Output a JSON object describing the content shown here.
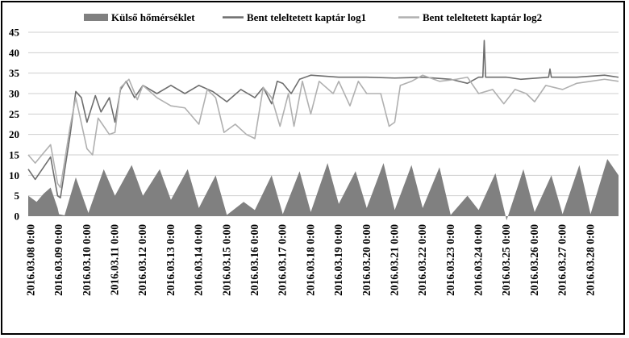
{
  "chart_data": {
    "type": "area",
    "title": "",
    "xlabel": "",
    "ylabel": "",
    "ylim": [
      0,
      45
    ],
    "yticks": [
      0,
      5,
      10,
      15,
      20,
      25,
      30,
      35,
      40,
      45
    ],
    "grid": {
      "horizontal": true,
      "vertical": false
    },
    "legend_position": "top",
    "x_range": [
      "2016.03.08 0:00",
      "2016.03.29 0:00"
    ],
    "x_tick_labels": [
      "2016.03.08 0:00",
      "2016.03.09 0:00",
      "2016.03.10 0:00",
      "2016.03.11 0:00",
      "2016.03.12 0:00",
      "2016.03.13 0:00",
      "2016.03.14 0:00",
      "2016.03.15 0:00",
      "2016.03.16 0:00",
      "2016.03.17 0:00",
      "2016.03.18 0:00",
      "2016.03.19 0:00",
      "2016.03.20 0:00",
      "2016.03.21 0:00",
      "2016.03.22 0:00",
      "2016.03.23 0:00",
      "2016.03.24 0:00",
      "2016.03.25 0:00",
      "2016.03.26 0:00",
      "2016.03.27 0:00",
      "2016.03.28 0:00"
    ],
    "series": [
      {
        "name": "Külső hőmérséklet",
        "kind": "area",
        "color": "#808080",
        "points": [
          [
            "2016.03.07 21:36",
            5.0
          ],
          [
            "2016.03.08 4:48",
            3.5
          ],
          [
            "2016.03.08 10:48",
            5.5
          ],
          [
            "2016.03.08 16:48",
            7.0
          ],
          [
            "2016.03.08 22:48",
            2.0
          ],
          [
            "2016.03.09 0:00",
            0.5
          ],
          [
            "2016.03.09 4:48",
            0.2
          ],
          [
            "2016.03.09 14:24",
            9.5
          ],
          [
            "2016.03.10 1:12",
            0.8
          ],
          [
            "2016.03.10 14:24",
            11.5
          ],
          [
            "2016.03.11 0:00",
            5.0
          ],
          [
            "2016.03.11 14:24",
            12.5
          ],
          [
            "2016.03.12 0:00",
            5.0
          ],
          [
            "2016.03.12 14:24",
            11.5
          ],
          [
            "2016.03.13 0:00",
            4.0
          ],
          [
            "2016.03.13 14:24",
            11.5
          ],
          [
            "2016.03.14 0:00",
            2.0
          ],
          [
            "2016.03.14 14:24",
            10.0
          ],
          [
            "2016.03.15 0:00",
            0.3
          ],
          [
            "2016.03.15 14:24",
            3.5
          ],
          [
            "2016.03.16 0:00",
            1.5
          ],
          [
            "2016.03.16 14:24",
            10.0
          ],
          [
            "2016.03.17 0:00",
            0.5
          ],
          [
            "2016.03.17 14:24",
            11.0
          ],
          [
            "2016.03.18 0:00",
            1.0
          ],
          [
            "2016.03.18 14:24",
            13.0
          ],
          [
            "2016.03.19 0:00",
            3.0
          ],
          [
            "2016.03.19 14:24",
            11.0
          ],
          [
            "2016.03.20 0:00",
            2.0
          ],
          [
            "2016.03.20 14:24",
            13.0
          ],
          [
            "2016.03.21 0:00",
            1.5
          ],
          [
            "2016.03.21 14:24",
            12.5
          ],
          [
            "2016.03.22 0:00",
            2.0
          ],
          [
            "2016.03.22 14:24",
            12.0
          ],
          [
            "2016.03.23 0:00",
            0.3
          ],
          [
            "2016.03.23 14:24",
            5.0
          ],
          [
            "2016.03.24 0:00",
            1.5
          ],
          [
            "2016.03.24 14:24",
            10.5
          ],
          [
            "2016.03.25 0:00",
            -1.0
          ],
          [
            "2016.03.25 14:24",
            11.5
          ],
          [
            "2016.03.26 0:00",
            1.0
          ],
          [
            "2016.03.26 14:24",
            10.0
          ],
          [
            "2016.03.27 0:00",
            0.5
          ],
          [
            "2016.03.27 14:24",
            12.5
          ],
          [
            "2016.03.28 0:00",
            0.5
          ],
          [
            "2016.03.28 14:24",
            14.0
          ],
          [
            "2016.03.29 0:00",
            10.0
          ]
        ]
      },
      {
        "name": "Bent teleltetett kaptár log1",
        "kind": "line",
        "color": "#6e6e6e",
        "points": [
          [
            "2016.03.07 21:36",
            11.5
          ],
          [
            "2016.03.08 3:36",
            9.0
          ],
          [
            "2016.03.08 10:48",
            12.0
          ],
          [
            "2016.03.08 16:48",
            14.5
          ],
          [
            "2016.03.08 22:48",
            5.0
          ],
          [
            "2016.03.09 1:12",
            4.5
          ],
          [
            "2016.03.09 9:36",
            20.0
          ],
          [
            "2016.03.09 14:24",
            30.5
          ],
          [
            "2016.03.09 19:12",
            29.0
          ],
          [
            "2016.03.10 0:00",
            23.0
          ],
          [
            "2016.03.10 7:12",
            29.5
          ],
          [
            "2016.03.10 12:00",
            25.5
          ],
          [
            "2016.03.10 19:12",
            29.0
          ],
          [
            "2016.03.11 0:00",
            23.0
          ],
          [
            "2016.03.11 4:48",
            31.0
          ],
          [
            "2016.03.11 9:36",
            33.0
          ],
          [
            "2016.03.11 16:48",
            29.0
          ],
          [
            "2016.03.12 0:00",
            32.0
          ],
          [
            "2016.03.12 12:00",
            30.0
          ],
          [
            "2016.03.13 0:00",
            32.0
          ],
          [
            "2016.03.13 12:00",
            30.0
          ],
          [
            "2016.03.14 0:00",
            32.0
          ],
          [
            "2016.03.14 12:00",
            30.5
          ],
          [
            "2016.03.15 0:00",
            28.0
          ],
          [
            "2016.03.15 12:00",
            31.0
          ],
          [
            "2016.03.16 0:00",
            29.0
          ],
          [
            "2016.03.16 7:12",
            31.5
          ],
          [
            "2016.03.16 14:24",
            27.5
          ],
          [
            "2016.03.16 19:12",
            33.0
          ],
          [
            "2016.03.17 0:00",
            32.5
          ],
          [
            "2016.03.17 7:12",
            30.0
          ],
          [
            "2016.03.17 14:24",
            33.5
          ],
          [
            "2016.03.18 0:00",
            34.5
          ],
          [
            "2016.03.19 0:00",
            34.0
          ],
          [
            "2016.03.20 0:00",
            34.0
          ],
          [
            "2016.03.21 0:00",
            33.8
          ],
          [
            "2016.03.22 0:00",
            34.0
          ],
          [
            "2016.03.23 0:00",
            33.5
          ],
          [
            "2016.03.23 14:24",
            32.5
          ],
          [
            "2016.03.24 0:00",
            34.0
          ],
          [
            "2016.03.24 3:36",
            34.0
          ],
          [
            "2016.03.24 4:48",
            43.0
          ],
          [
            "2016.03.24 6:00",
            34.0
          ],
          [
            "2016.03.25 0:00",
            34.0
          ],
          [
            "2016.03.25 12:00",
            33.5
          ],
          [
            "2016.03.26 12:00",
            34.0
          ],
          [
            "2016.03.26 13:12",
            36.0
          ],
          [
            "2016.03.26 14:24",
            34.0
          ],
          [
            "2016.03.27 12:00",
            34.0
          ],
          [
            "2016.03.28 12:00",
            34.5
          ],
          [
            "2016.03.29 0:00",
            34.0
          ]
        ]
      },
      {
        "name": "Bent teleltetett kaptár log2",
        "kind": "line",
        "color": "#b0b0b0",
        "points": [
          [
            "2016.03.07 21:36",
            15.0
          ],
          [
            "2016.03.08 3:36",
            13.0
          ],
          [
            "2016.03.08 10:48",
            15.5
          ],
          [
            "2016.03.08 16:48",
            17.5
          ],
          [
            "2016.03.08 22:48",
            8.0
          ],
          [
            "2016.03.09 1:12",
            7.0
          ],
          [
            "2016.03.09 9:36",
            22.0
          ],
          [
            "2016.03.09 14:24",
            29.0
          ],
          [
            "2016.03.10 0:00",
            16.5
          ],
          [
            "2016.03.10 4:48",
            15.0
          ],
          [
            "2016.03.10 9:36",
            24.0
          ],
          [
            "2016.03.10 19:12",
            20.0
          ],
          [
            "2016.03.11 0:00",
            20.5
          ],
          [
            "2016.03.11 4:48",
            31.5
          ],
          [
            "2016.03.11 12:00",
            33.5
          ],
          [
            "2016.03.11 19:12",
            28.5
          ],
          [
            "2016.03.12 0:00",
            32.0
          ],
          [
            "2016.03.12 12:00",
            29.0
          ],
          [
            "2016.03.13 0:00",
            27.0
          ],
          [
            "2016.03.13 12:00",
            26.5
          ],
          [
            "2016.03.14 0:00",
            22.5
          ],
          [
            "2016.03.14 7:12",
            31.0
          ],
          [
            "2016.03.14 14:24",
            29.0
          ],
          [
            "2016.03.14 21:36",
            20.5
          ],
          [
            "2016.03.15 7:12",
            22.5
          ],
          [
            "2016.03.15 16:48",
            20.0
          ],
          [
            "2016.03.16 0:00",
            19.0
          ],
          [
            "2016.03.16 7:12",
            31.5
          ],
          [
            "2016.03.16 14:24",
            29.0
          ],
          [
            "2016.03.16 21:36",
            22.0
          ],
          [
            "2016.03.17 4:48",
            30.0
          ],
          [
            "2016.03.17 9:36",
            22.0
          ],
          [
            "2016.03.17 16:48",
            33.0
          ],
          [
            "2016.03.18 0:00",
            25.0
          ],
          [
            "2016.03.18 7:12",
            33.0
          ],
          [
            "2016.03.18 19:12",
            30.0
          ],
          [
            "2016.03.19 0:00",
            33.0
          ],
          [
            "2016.03.19 9:36",
            27.0
          ],
          [
            "2016.03.19 16:48",
            33.0
          ],
          [
            "2016.03.20 0:00",
            30.0
          ],
          [
            "2016.03.20 12:00",
            30.0
          ],
          [
            "2016.03.20 19:12",
            22.0
          ],
          [
            "2016.03.21 0:00",
            23.0
          ],
          [
            "2016.03.21 4:48",
            32.0
          ],
          [
            "2016.03.21 14:24",
            33.0
          ],
          [
            "2016.03.22 0:00",
            34.5
          ],
          [
            "2016.03.22 14:24",
            33.0
          ],
          [
            "2016.03.23 4:48",
            33.5
          ],
          [
            "2016.03.23 14:24",
            34.0
          ],
          [
            "2016.03.24 0:00",
            30.0
          ],
          [
            "2016.03.24 12:00",
            31.0
          ],
          [
            "2016.03.24 21:36",
            27.5
          ],
          [
            "2016.03.25 7:12",
            31.0
          ],
          [
            "2016.03.25 16:48",
            30.0
          ],
          [
            "2016.03.26 0:00",
            28.0
          ],
          [
            "2016.03.26 9:36",
            32.0
          ],
          [
            "2016.03.27 0:00",
            31.0
          ],
          [
            "2016.03.27 12:00",
            32.5
          ],
          [
            "2016.03.28 0:00",
            33.0
          ],
          [
            "2016.03.28 12:00",
            33.5
          ],
          [
            "2016.03.29 0:00",
            33.0
          ]
        ]
      }
    ]
  }
}
